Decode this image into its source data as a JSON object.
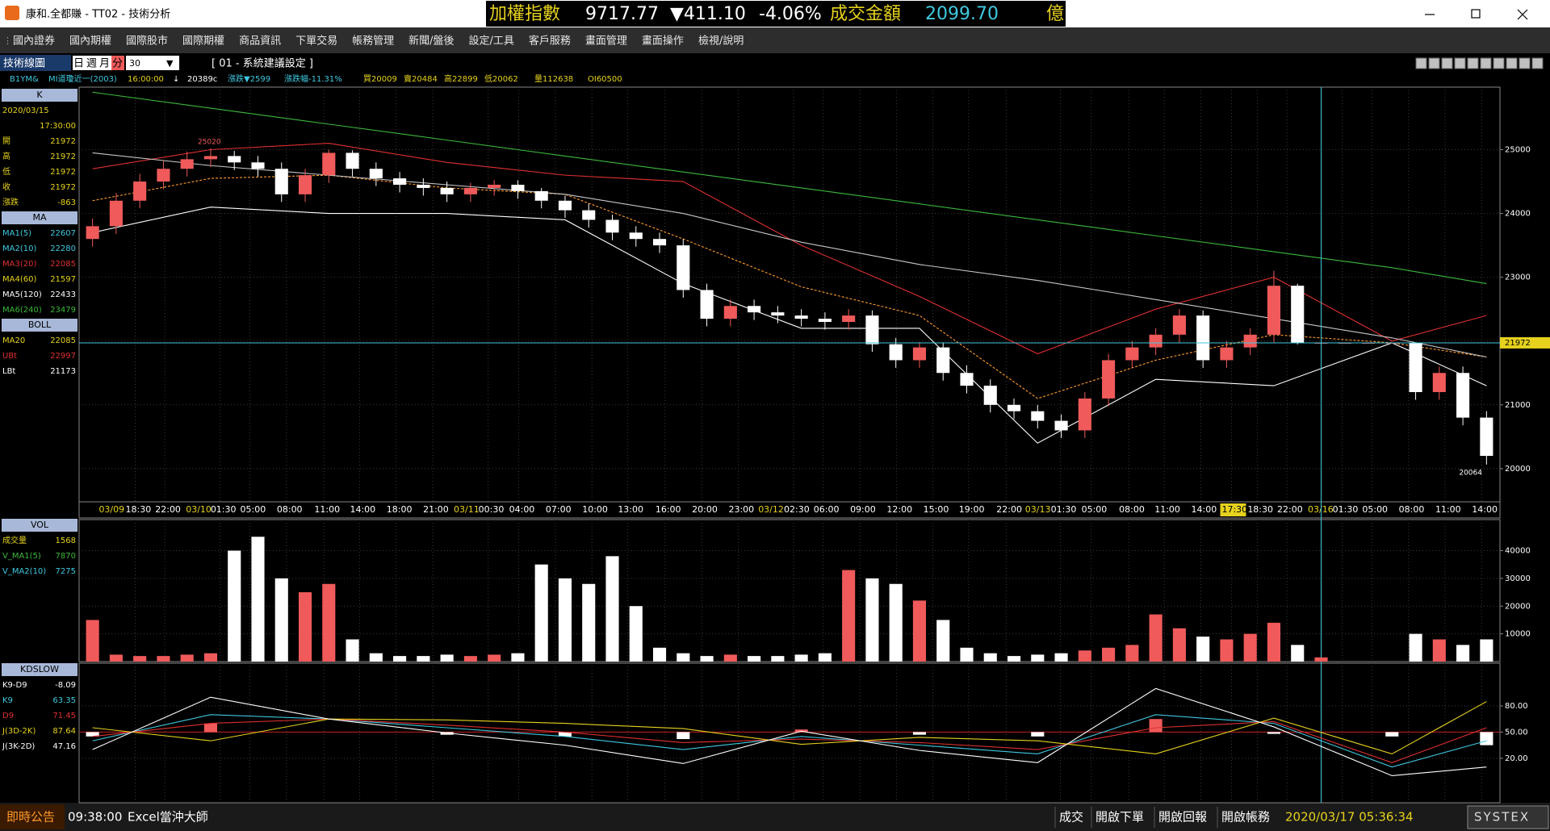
{
  "window": {
    "title": "康和.全都賺 - TT02 - 技術分析"
  },
  "ticker": {
    "name": "加權指數",
    "price": "9717.77",
    "change": "▼411.10",
    "pct": "-4.06%",
    "turnover_label": "成交金額",
    "turnover": "2099.70",
    "unit": "億"
  },
  "menu": [
    "國內證券",
    "國內期權",
    "國際股市",
    "國際期權",
    "商品資訊",
    "下單交易",
    "帳務管理",
    "新聞/盤後",
    "設定/工具",
    "客戶服務",
    "畫面管理",
    "畫面操作",
    "檢視/說明"
  ],
  "toolbar": {
    "title": "技術線圖",
    "periods": [
      "日",
      "週",
      "月",
      "分"
    ],
    "interval": "30",
    "setting": "[ 01 - 系統建議設定 ]"
  },
  "info": [
    "B1YM&",
    "MI道瓊近一(2003)",
    "16:00:00",
    "↓",
    "20389c",
    "漲跌▼2599",
    "漲跌幅-11.31%",
    "買20009",
    "賣20484",
    "高22899",
    "低20062",
    "量112638",
    "OI60500"
  ],
  "side": {
    "k": {
      "header": "K",
      "date": "2020/03/15",
      "time": "17:30:00",
      "labels": [
        "開",
        "高",
        "低",
        "收",
        "漲跌"
      ],
      "change": "-863"
    },
    "ma": {
      "header": "MA",
      "rows": [
        [
          "MA1(5)",
          "22607"
        ],
        [
          "MA2(10)",
          "22280"
        ],
        [
          "MA3(20)",
          "22085"
        ],
        [
          "MA4(60)",
          "21597"
        ]
      ],
      "ma5": "22433",
      "ma6": "23479"
    },
    "boll": {
      "header": "BOLL",
      "values": [
        "22085",
        "22997",
        "21173"
      ]
    },
    "vol": {
      "header": "VOL",
      "rows": [
        [
          "成交量",
          "1568"
        ],
        [
          "V_MA1(5)",
          "7870"
        ],
        [
          "V_MA2(10)",
          "7275"
        ]
      ]
    },
    "kd": {
      "header": "KDSLOW",
      "values": [
        "-8.09",
        "63.35",
        "71.45",
        "87.64",
        "47.16"
      ]
    }
  },
  "time_axis": [
    "03/09",
    "18:30",
    "22:00",
    "03/10",
    "01:30",
    "05:00",
    "08:00",
    "11:00",
    "14:00",
    "18:00",
    "21:00",
    "03/11",
    "00:30",
    "04:00",
    "07:00",
    "10:00",
    "13:00",
    "16:00",
    "20:00",
    "23:00",
    "03/12",
    "02:30",
    "06:00",
    "09:00",
    "12:00",
    "15:00",
    "19:00",
    "22:00",
    "03/13",
    "01:30",
    "05:00",
    "08:00",
    "11:00",
    "14:00",
    "17:30",
    "18:30",
    "22:00",
    "03/16",
    "01:30",
    "05:00",
    "08:00",
    "11:00",
    "14:00"
  ],
  "status": {
    "notice": "即時公告",
    "time": "09:38:00",
    "app": "Excel當沖大師",
    "buttons": [
      "成交",
      "開啟下單",
      "開啟回報",
      "開啟帳務"
    ],
    "clock": "2020/03/17 05:36:34",
    "brand": "SYSTEX"
  },
  "chart_data": [
    {
      "type": "candlestick",
      "up_color": "#f05a5a",
      "down_color": "#ffffff",
      "grid": true,
      "open": [
        23600,
        23800,
        24200,
        24500,
        24700,
        24850,
        24900,
        24800,
        24700,
        24300,
        24600,
        24950,
        24700,
        24550,
        24450,
        24400,
        24300,
        24400,
        24450,
        24350,
        24200,
        24050,
        23900,
        23700,
        23600,
        23500,
        22800,
        22350,
        22550,
        22450,
        22400,
        22350,
        22300,
        22400,
        21950,
        21700,
        21900,
        21500,
        21300,
        21000,
        20900,
        20750,
        20600,
        21100,
        21700,
        21900,
        22100,
        22400,
        21700,
        21900,
        22100,
        22867,
        21972,
        21972,
        21972,
        21972,
        21972,
        21200,
        21500,
        20800
      ],
      "high": [
        23920,
        24320,
        24620,
        24820,
        24970,
        25020,
        24980,
        24900,
        24800,
        24700,
        25000,
        24990,
        24800,
        24650,
        24550,
        24500,
        24480,
        24520,
        24520,
        24400,
        24280,
        24150,
        23980,
        23800,
        23700,
        23600,
        22900,
        22650,
        22650,
        22550,
        22500,
        22450,
        22500,
        22480,
        22050,
        21980,
        21980,
        21620,
        21400,
        21100,
        21000,
        20850,
        21200,
        21800,
        22000,
        22200,
        22500,
        22480,
        22000,
        22200,
        23100,
        22899,
        21972,
        21972,
        21972,
        21972,
        21972,
        21600,
        21600,
        20900
      ],
      "low": [
        23480,
        23680,
        24080,
        24380,
        24580,
        24730,
        24680,
        24580,
        24180,
        24180,
        24480,
        24580,
        24430,
        24330,
        24280,
        24180,
        24180,
        24280,
        24230,
        24080,
        23930,
        23780,
        23580,
        23480,
        23380,
        22680,
        22230,
        22230,
        22330,
        22280,
        22230,
        22180,
        22180,
        21830,
        21580,
        21580,
        21380,
        21180,
        20880,
        20780,
        20630,
        20480,
        20480,
        20980,
        21580,
        21780,
        21980,
        21580,
        21580,
        21780,
        21980,
        21947,
        21972,
        21972,
        21972,
        21972,
        21080,
        21080,
        20680,
        20064
      ],
      "close": [
        23800,
        24200,
        24500,
        24700,
        24850,
        24900,
        24800,
        24700,
        24300,
        24600,
        24950,
        24700,
        24550,
        24450,
        24400,
        24300,
        24400,
        24450,
        24350,
        24200,
        24050,
        23900,
        23700,
        23600,
        23500,
        22800,
        22350,
        22550,
        22450,
        22400,
        22350,
        22300,
        22400,
        21950,
        21700,
        21900,
        21500,
        21300,
        21000,
        20900,
        20750,
        20600,
        21100,
        21700,
        21900,
        22100,
        22400,
        21700,
        21900,
        22100,
        22867,
        21972,
        21972,
        21972,
        21972,
        21972,
        21200,
        21500,
        20800,
        20200
      ],
      "overlays": [
        {
          "name": "MA20",
          "color": "#ff9a2e",
          "x": [
            0,
            5,
            10,
            15,
            20,
            25,
            30,
            35,
            40,
            45,
            50,
            55,
            59
          ],
          "values": [
            24200,
            24550,
            24600,
            24400,
            24300,
            23600,
            22850,
            22400,
            21100,
            21700,
            22100,
            21972,
            21750
          ]
        },
        {
          "name": "UBt",
          "color": "#e03030",
          "x": [
            0,
            5,
            10,
            15,
            20,
            25,
            30,
            35,
            40,
            45,
            50,
            55,
            59
          ],
          "values": [
            24700,
            25000,
            25100,
            24800,
            24600,
            24500,
            23500,
            22700,
            21800,
            22500,
            23000,
            22000,
            22400
          ]
        },
        {
          "name": "LBt",
          "color": "#ffffff",
          "x": [
            0,
            5,
            10,
            15,
            20,
            25,
            30,
            35,
            40,
            45,
            50,
            55,
            59
          ],
          "values": [
            23700,
            24100,
            24000,
            24000,
            23900,
            22900,
            22200,
            22200,
            20400,
            21400,
            21300,
            21972,
            21300
          ]
        },
        {
          "name": "MA5(120)",
          "color": "#c8c8c8",
          "x": [
            0,
            5,
            10,
            15,
            20,
            25,
            30,
            35,
            40,
            45,
            50,
            55,
            59
          ],
          "values": [
            24950,
            24750,
            24600,
            24450,
            24300,
            24000,
            23550,
            23200,
            22950,
            22650,
            22350,
            22050,
            21750
          ]
        },
        {
          "name": "MA6(240)",
          "color": "#3cb83c",
          "x": [
            0,
            5,
            10,
            15,
            20,
            25,
            30,
            35,
            40,
            45,
            50,
            55,
            59
          ],
          "values": [
            25900,
            25650,
            25400,
            25150,
            24900,
            24650,
            24400,
            24150,
            23900,
            23650,
            23400,
            23150,
            22900
          ]
        }
      ],
      "ylim": [
        19480,
        25980
      ],
      "yticks": [
        20000,
        21000,
        22000,
        23000,
        24000,
        25000
      ]
    },
    {
      "type": "bar",
      "values": [
        15000,
        2500,
        2000,
        2000,
        2500,
        3000,
        40000,
        45000,
        30000,
        25000,
        28000,
        8000,
        3000,
        2000,
        2000,
        2500,
        2000,
        2500,
        3000,
        35000,
        30000,
        28000,
        38000,
        20000,
        5000,
        3000,
        2000,
        2500,
        2000,
        2000,
        2500,
        3000,
        33000,
        30000,
        28000,
        22000,
        15000,
        5000,
        3000,
        2000,
        2500,
        3000,
        4000,
        5000,
        6000,
        17000,
        12000,
        9000,
        8000,
        10000,
        14000,
        6000,
        1500,
        0,
        0,
        0,
        10000,
        8000,
        6000,
        8000
      ],
      "ylim": [
        0,
        51200
      ],
      "yticks": [
        10000,
        20000,
        30000,
        40000
      ]
    },
    {
      "type": "line",
      "series": [
        {
          "name": "K9",
          "color": "#3fc9e0",
          "x": [
            0,
            5,
            10,
            15,
            20,
            25,
            30,
            35,
            40,
            45,
            50,
            55,
            59
          ],
          "values": [
            40,
            70,
            65,
            55,
            45,
            30,
            45,
            35,
            25,
            70,
            60,
            10,
            40
          ]
        },
        {
          "name": "D9",
          "color": "#e03030",
          "x": [
            0,
            5,
            10,
            15,
            20,
            25,
            30,
            35,
            40,
            45,
            50,
            55,
            59
          ],
          "values": [
            45,
            60,
            65,
            58,
            50,
            38,
            42,
            38,
            30,
            55,
            62,
            15,
            55
          ]
        },
        {
          "name": "J(3D-2K)",
          "color": "#e6d21e",
          "x": [
            0,
            5,
            10,
            15,
            20,
            25,
            30,
            35,
            40,
            45,
            50,
            55,
            59
          ],
          "values": [
            55,
            40,
            65,
            64,
            60,
            54,
            36,
            44,
            40,
            25,
            66,
            25,
            85
          ]
        },
        {
          "name": "J(3K-2D)",
          "color": "#ffffff",
          "x": [
            0,
            5,
            10,
            15,
            20,
            25,
            30,
            35,
            40,
            45,
            50,
            55,
            59
          ],
          "values": [
            30,
            90,
            65,
            49,
            35,
            14,
            51,
            29,
            15,
            100,
            56,
            0,
            10
          ]
        }
      ],
      "bars": {
        "name": "K9-D9",
        "x": [
          0,
          5,
          10,
          15,
          20,
          25,
          30,
          35,
          40,
          45,
          50,
          55,
          59
        ],
        "values": [
          -5,
          10,
          0,
          -3,
          -5,
          -8,
          3,
          -3,
          -5,
          15,
          -2,
          -5,
          -15
        ]
      },
      "ylim": [
        -31,
        129
      ],
      "yticks": [
        {
          "value": 20,
          "label": "20.00"
        },
        {
          "value": 50,
          "label": "50.00"
        },
        {
          "value": 80,
          "label": "80.00"
        }
      ]
    }
  ]
}
